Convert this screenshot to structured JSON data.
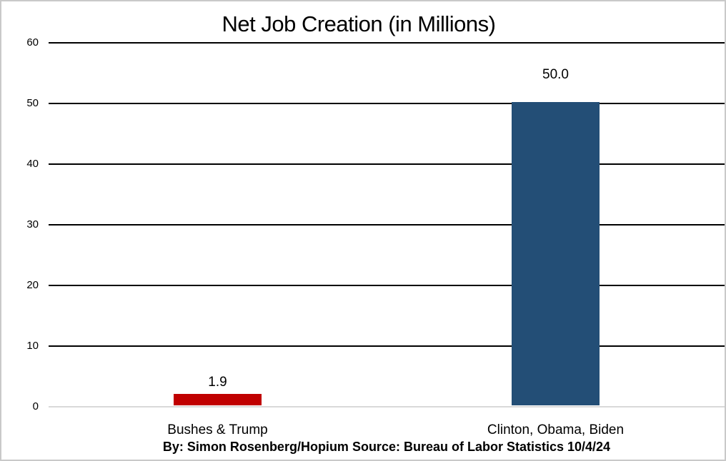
{
  "window": {
    "background_color": "#FFFFFF",
    "border_color": "#C9C9C9"
  },
  "chart_data": {
    "type": "bar",
    "title": "Net Job Creation (in Millions)",
    "categories": [
      "Bushes & Trump",
      "Clinton, Obama, Biden"
    ],
    "values": [
      1.9,
      50.0
    ],
    "value_labels": [
      "1.9",
      "50.0"
    ],
    "series_colors": [
      "#C00000",
      "#234E76"
    ],
    "xlabel": "",
    "ylabel": "",
    "ylim": [
      0,
      60
    ],
    "yticks": [
      0,
      10,
      20,
      30,
      40,
      50,
      60
    ],
    "ytick_labels": [
      "0",
      "10",
      "20",
      "30",
      "40",
      "50",
      "60"
    ],
    "grid": "horizontal-major-on",
    "gridline_color": "#000000",
    "zero_line_color": "#D9D9D9",
    "legend": "none",
    "footer": "By: Simon Rosenberg/Hopium Source: Bureau of Labor Statistics 10/4/24"
  }
}
